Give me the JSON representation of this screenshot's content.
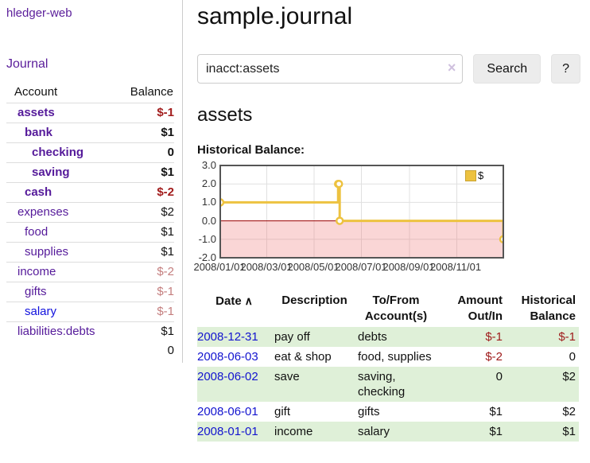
{
  "sidebar": {
    "brand": "hledger-web",
    "journal_link": "Journal",
    "accounts": {
      "headers": {
        "account": "Account",
        "balance": "Balance"
      },
      "rows": [
        {
          "name": "assets",
          "balance": "$-1",
          "indent": 1,
          "emphasis": true,
          "negative": true
        },
        {
          "name": "bank",
          "balance": "$1",
          "indent": 2,
          "emphasis": true,
          "negative": false
        },
        {
          "name": "checking",
          "balance": "0",
          "indent": 3,
          "emphasis": true,
          "negative": false
        },
        {
          "name": "saving",
          "balance": "$1",
          "indent": 3,
          "emphasis": true,
          "negative": false
        },
        {
          "name": "cash",
          "balance": "$-2",
          "indent": 2,
          "emphasis": true,
          "negative": true
        },
        {
          "name": "expenses",
          "balance": "$2",
          "indent": 1,
          "emphasis": false,
          "negative": false
        },
        {
          "name": "food",
          "balance": "$1",
          "indent": 2,
          "emphasis": false,
          "negative": false
        },
        {
          "name": "supplies",
          "balance": "$1",
          "indent": 2,
          "emphasis": false,
          "negative": false
        },
        {
          "name": "income",
          "balance": "$-2",
          "indent": 1,
          "emphasis": false,
          "negative": true
        },
        {
          "name": "gifts",
          "balance": "$-1",
          "indent": 2,
          "emphasis": false,
          "negative": true
        },
        {
          "name": "salary",
          "balance": "$-1",
          "indent": 2,
          "emphasis": false,
          "negative": true,
          "link_color": "blue"
        },
        {
          "name": "liabilities:debts",
          "balance": "$1",
          "indent": 1,
          "emphasis": false,
          "negative": false
        }
      ],
      "total": "0"
    }
  },
  "main": {
    "title": "sample.journal",
    "search": {
      "value": "inacct:assets",
      "clear_icon": "×",
      "button": "Search",
      "help_button": "?"
    },
    "account_heading": "assets",
    "chart_label": "Historical Balance:"
  },
  "chart_data": {
    "type": "line",
    "step": true,
    "series": [
      {
        "name": "$",
        "color": "#edc240",
        "points": [
          [
            "2008-01-01",
            1
          ],
          [
            "2008-06-01",
            2
          ],
          [
            "2008-06-02",
            2
          ],
          [
            "2008-06-03",
            0
          ],
          [
            "2008-12-31",
            -1
          ]
        ]
      }
    ],
    "ylim": [
      -2,
      3
    ],
    "yticks": [
      3.0,
      2.0,
      1.0,
      0.0,
      -1.0,
      -2.0
    ],
    "xticks": [
      "2008/01/01",
      "2008/03/01",
      "2008/05/01",
      "2008/07/01",
      "2008/09/01",
      "2008/11/01"
    ],
    "grid": true,
    "gridline_color": "#e0e0e0",
    "border_color": "#555555",
    "zero_line_color": "#990000",
    "negative_region_color": "#f07878",
    "negative_region_opacity": 0.3,
    "legend": {
      "label": "$",
      "swatch_color": "#edc240",
      "position": "top-right"
    }
  },
  "register": {
    "sort_icon": "∧",
    "columns": [
      {
        "label": "Date",
        "align": "left",
        "sorted": true
      },
      {
        "label": "Description",
        "align": "left"
      },
      {
        "label": "To/From Account(s)",
        "align": "left"
      },
      {
        "label": "Amount Out/In",
        "align": "right"
      },
      {
        "label": "Historical Balance",
        "align": "right"
      }
    ],
    "rows": [
      {
        "date": "2008-12-31",
        "description": "pay off",
        "accounts": "debts",
        "amount": "$-1",
        "balance": "$-1"
      },
      {
        "date": "2008-06-03",
        "description": "eat & shop",
        "accounts": "food, supplies",
        "amount": "$-2",
        "balance": "0"
      },
      {
        "date": "2008-06-02",
        "description": "save",
        "accounts": "saving, checking",
        "amount": "0",
        "balance": "$2"
      },
      {
        "date": "2008-06-01",
        "description": "gift",
        "accounts": "gifts",
        "amount": "$1",
        "balance": "$2"
      },
      {
        "date": "2008-01-01",
        "description": "income",
        "accounts": "salary",
        "amount": "$1",
        "balance": "$1"
      }
    ]
  }
}
